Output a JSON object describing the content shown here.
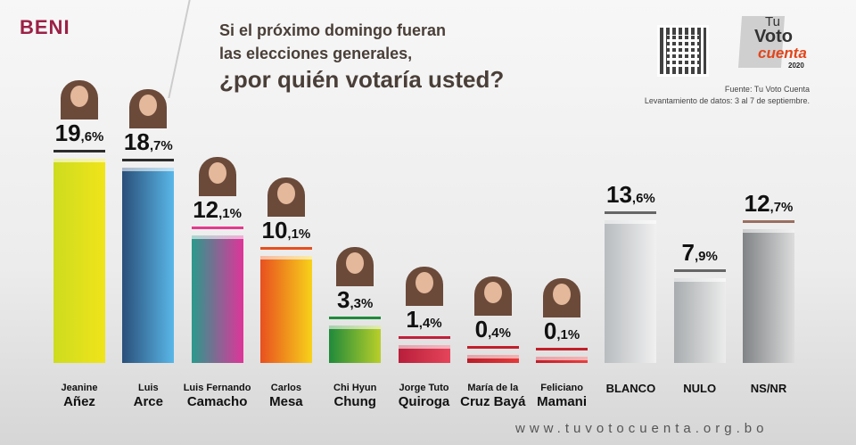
{
  "header": {
    "region": "BENI",
    "question_line1": "Si el próximo domingo fueran",
    "question_line2": "las elecciones generales,",
    "question_line3": "¿por quién votaría usted?",
    "source": "Fuente: Tu Voto Cuenta",
    "fieldwork": "Levantamiento de datos: 3 al 7 de septiembre.",
    "logo": {
      "tu": "Tu",
      "voto": "Voto",
      "cuenta": "cuenta",
      "year": "2020"
    }
  },
  "footer": {
    "url": "www.tuvotocuenta.org.bo"
  },
  "chart_data": {
    "type": "bar",
    "title": "¿por quién votaría usted?",
    "ylim": [
      0,
      20
    ],
    "categories": [
      {
        "first": "Jeanine",
        "last": "Añez"
      },
      {
        "first": "Luis",
        "last": "Arce"
      },
      {
        "first": "Luis Fernando",
        "last": "Camacho"
      },
      {
        "first": "Carlos",
        "last": "Mesa"
      },
      {
        "first": "Chi Hyun",
        "last": "Chung"
      },
      {
        "first": "Jorge Tuto",
        "last": "Quiroga"
      },
      {
        "first": "María de la",
        "last": "Cruz Bayá"
      },
      {
        "first": "Feliciano",
        "last": "Mamani"
      },
      {
        "first": "",
        "last": "BLANCO"
      },
      {
        "first": "",
        "last": "NULO"
      },
      {
        "first": "",
        "last": "NS/NR"
      }
    ],
    "values": [
      19.6,
      18.7,
      12.1,
      10.1,
      3.3,
      1.4,
      0.4,
      0.1,
      13.6,
      7.9,
      12.7
    ],
    "labels": [
      "19,6%",
      "18,7%",
      "12,1%",
      "10,1%",
      "3,3%",
      "1,4%",
      "0,4%",
      "0,1%",
      "13,6%",
      "7,9%",
      "12,7%"
    ],
    "colors": [
      [
        "#cddc1f",
        "#f0e41a"
      ],
      [
        "#2a4f7a",
        "#59b7e8"
      ],
      [
        "#2a9a8c",
        "#e0349a"
      ],
      [
        "#e8501f",
        "#f7d21a"
      ],
      [
        "#1f8a3a",
        "#b9cf2a"
      ],
      [
        "#b81e3a",
        "#e6455a"
      ],
      [
        "#b81e2a",
        "#e63a3a"
      ],
      [
        "#c01e2a",
        "#e84040"
      ],
      [
        "#b8bcbf",
        "#f0f0f0"
      ],
      [
        "#a8acae",
        "#ececec"
      ],
      [
        "#808386",
        "#dcdcdc"
      ]
    ],
    "accent": [
      "#2c2c2c",
      "#2c2c2c",
      "#e43b8c",
      "#e84e1b",
      "#1f8a3a",
      "#c0203a",
      "#c0202a",
      "#c0202a",
      "#666",
      "#666",
      "#9a7060"
    ],
    "has_photo": [
      true,
      true,
      true,
      true,
      true,
      true,
      true,
      true,
      false,
      false,
      false
    ]
  }
}
